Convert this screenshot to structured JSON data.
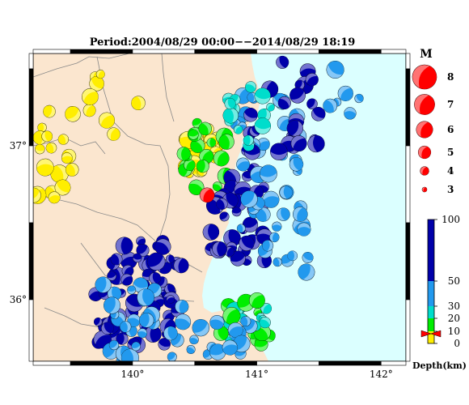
{
  "title": "Period:2004/08/29 00:00−−2014/08/29 18:19",
  "map": {
    "lon_range": [
      139.2,
      142.2
    ],
    "lat_range": [
      35.6,
      37.6
    ],
    "lon_ticks": [
      {
        "value": 140,
        "label": "140°"
      },
      {
        "value": 141,
        "label": "141°"
      },
      {
        "value": 142,
        "label": "142°"
      }
    ],
    "lat_ticks": [
      {
        "value": 36,
        "label": "36°"
      },
      {
        "value": 37,
        "label": "37°"
      }
    ],
    "colors": {
      "land": "#fbe6cf",
      "sea": "#dbffff",
      "border": "#888888",
      "highlight": "#ff0000"
    },
    "highlight_event": {
      "lon": 140.6,
      "lat": 36.68,
      "depth": 8,
      "mag": 5
    }
  },
  "magnitude_legend": {
    "title": "M",
    "items": [
      {
        "mag": 8,
        "label": "8"
      },
      {
        "mag": 7,
        "label": "7"
      },
      {
        "mag": 6,
        "label": "6"
      },
      {
        "mag": 5,
        "label": "5"
      },
      {
        "mag": 4,
        "label": "4"
      },
      {
        "mag": 3,
        "label": "3"
      }
    ]
  },
  "depth_colorbar": {
    "title": "Depth(km)",
    "ticks": [
      {
        "value": 100,
        "label": "100"
      },
      {
        "value": 50,
        "label": "50"
      },
      {
        "value": 30,
        "label": "30"
      },
      {
        "value": 20,
        "label": "20"
      },
      {
        "value": 10,
        "label": "10"
      },
      {
        "value": 0,
        "label": "0"
      }
    ],
    "bands": [
      {
        "from": 0,
        "to": 10,
        "color": "#ffee00"
      },
      {
        "from": 10,
        "to": 20,
        "color": "#00ee00"
      },
      {
        "from": 20,
        "to": 30,
        "color": "#00ddcc"
      },
      {
        "from": 30,
        "to": 50,
        "color": "#2299ee"
      },
      {
        "from": 50,
        "to": 100,
        "color": "#0000aa"
      }
    ],
    "current_depth": 8
  },
  "chart_data": {
    "type": "scatter",
    "title": "Period:2004/08/29 00:00−−2014/08/29 18:19",
    "xlabel": "",
    "ylabel": "",
    "xlim": [
      139.2,
      142.2
    ],
    "ylim": [
      35.6,
      37.6
    ],
    "legend": "right",
    "series": [
      {
        "name": "",
        "x": [
          140.58,
          140.1,
          140.2,
          140.9,
          140.95,
          140.5,
          141.2
        ],
        "y": [
          37.0,
          36.15,
          35.8,
          36.8,
          35.75,
          36.6,
          36.9
        ]
      }
    ]
  }
}
